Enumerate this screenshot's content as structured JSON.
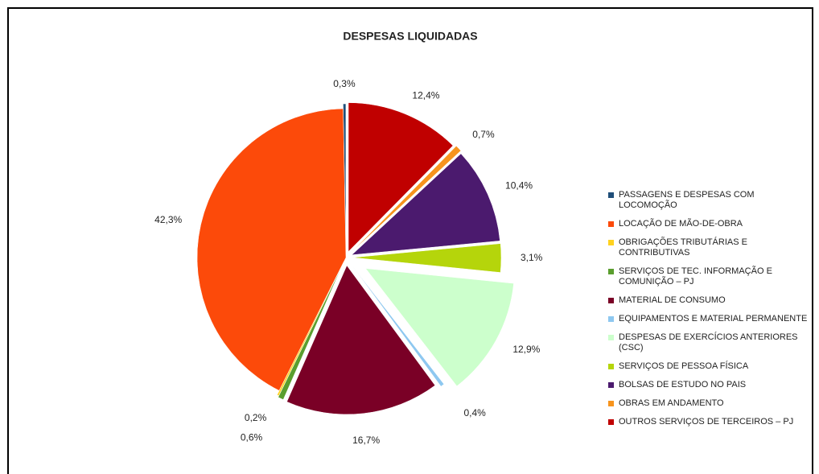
{
  "chart_data": {
    "type": "pie",
    "title": "DESPESAS LIQUIDADAS",
    "categories": [
      "PASSAGENS E DESPESAS COM LOCOMOÇÃO",
      "LOCAÇÃO DE MÃO-DE-OBRA",
      "OBRIGAÇÕES TRIBUTÁRIAS E CONTRIBUTIVAS",
      "SERVIÇOS DE TEC. INFORMAÇÃO E COMUNIÇÃO – PJ",
      "MATERIAL DE CONSUMO",
      "EQUIPAMENTOS E MATERIAL PERMANENTE",
      "DESPESAS DE EXERCÍCIOS ANTERIORES (CSC)",
      "SERVIÇOS DE PESSOA FÍSICA",
      "BOLSAS DE ESTUDO NO PAIS",
      "OBRAS EM ANDAMENTO",
      "OUTROS SERVIÇOS DE TERCEIROS – PJ"
    ],
    "values": [
      0.3,
      42.3,
      0.2,
      0.6,
      16.7,
      0.4,
      12.9,
      3.1,
      10.4,
      0.7,
      12.4
    ],
    "value_labels": [
      "0,3%",
      "42,3%",
      "0,2%",
      "0,6%",
      "16,7%",
      "0,4%",
      "12,9%",
      "3,1%",
      "10,4%",
      "0,7%",
      "12,4%"
    ],
    "colors": [
      "#1f4e79",
      "#fc4a0a",
      "#ffd21f",
      "#5a9e2e",
      "#7a0026",
      "#8ec8f0",
      "#ccffcc",
      "#b5d50b",
      "#4b1a6e",
      "#f7941d",
      "#c00000"
    ],
    "legend": "right"
  }
}
